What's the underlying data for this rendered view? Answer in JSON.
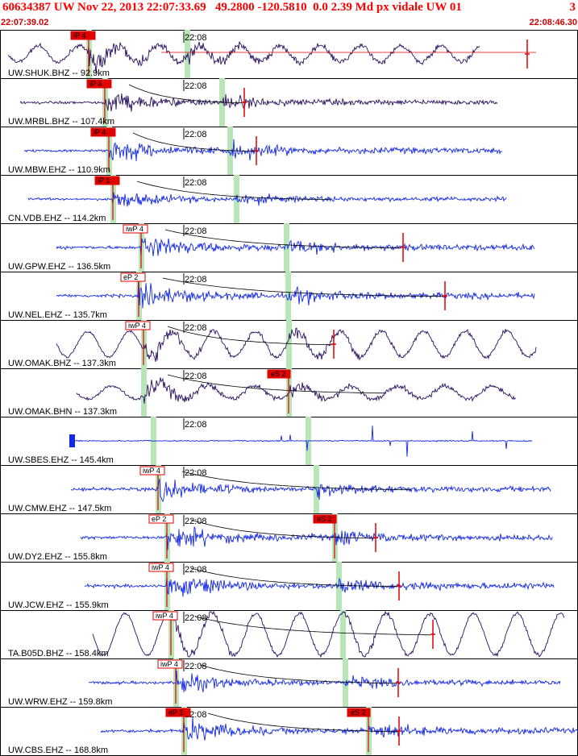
{
  "header": {
    "title": "60634387 UW Nov 22, 2013 22:07:33.69   49.2800 -120.5810  0.0 2.39 Md px vidale UW 01",
    "page_indicator": "3",
    "start_time": "22:07:39.02",
    "end_time": "22:08:46.30"
  },
  "minute_mark": "22:08",
  "colors": {
    "title": "#ff0000",
    "broadband_trace": "#2a1060",
    "short_period_trace": "#1428e6",
    "pick_marker": "#e00000",
    "phase_window": "#b8e6b8",
    "frame": "#000000"
  },
  "traces": [
    {
      "label": "UW.SHUK.BHZ -- 92.9km",
      "type": "broadband",
      "p_pick": "iP 4",
      "s_pick": ""
    },
    {
      "label": "UW.MRBL.BHZ -- 107.4km",
      "type": "broadband",
      "p_pick": "iP 4",
      "s_pick": ""
    },
    {
      "label": "UW.MBW.EHZ -- 110.9km",
      "type": "short-period",
      "p_pick": "iP 4",
      "s_pick": ""
    },
    {
      "label": "CN.VDB.EHZ -- 114.2km",
      "type": "short-period",
      "p_pick": "iP 1",
      "s_pick": ""
    },
    {
      "label": "UW.GPW.EHZ -- 136.5km",
      "type": "short-period",
      "p_pick": "iwP 4",
      "s_pick": ""
    },
    {
      "label": "UW.NEL.EHZ -- 135.7km",
      "type": "short-period",
      "p_pick": "eP 2",
      "s_pick": ""
    },
    {
      "label": "UW.OMAK.BHZ -- 137.3km",
      "type": "broadband",
      "p_pick": "iwP 4",
      "s_pick": ""
    },
    {
      "label": "UW.OMAK.BHN -- 137.3km",
      "type": "broadband",
      "p_pick": "",
      "s_pick": "eS 2"
    },
    {
      "label": "UW.SBES.EHZ -- 145.4km",
      "type": "short-period",
      "p_pick": "",
      "s_pick": ""
    },
    {
      "label": "UW.CMW.EHZ -- 147.5km",
      "type": "short-period",
      "p_pick": "iwP 4",
      "s_pick": ""
    },
    {
      "label": "UW.DY2.EHZ -- 155.8km",
      "type": "short-period",
      "p_pick": "eP 2",
      "s_pick": "eS 2"
    },
    {
      "label": "UW.JCW.EHZ -- 155.9km",
      "type": "short-period",
      "p_pick": "iwP 4",
      "s_pick": ""
    },
    {
      "label": "TA.B05D.BHZ -- 158.4km",
      "type": "broadband",
      "p_pick": "iwP 4",
      "s_pick": ""
    },
    {
      "label": "UW.WRW.EHZ -- 159.8km",
      "type": "short-period",
      "p_pick": "iwP 4",
      "s_pick": ""
    },
    {
      "label": "UW.CBS.EHZ -- 168.8km",
      "type": "short-period",
      "p_pick": "eP 1",
      "s_pick": "eS 2"
    }
  ]
}
